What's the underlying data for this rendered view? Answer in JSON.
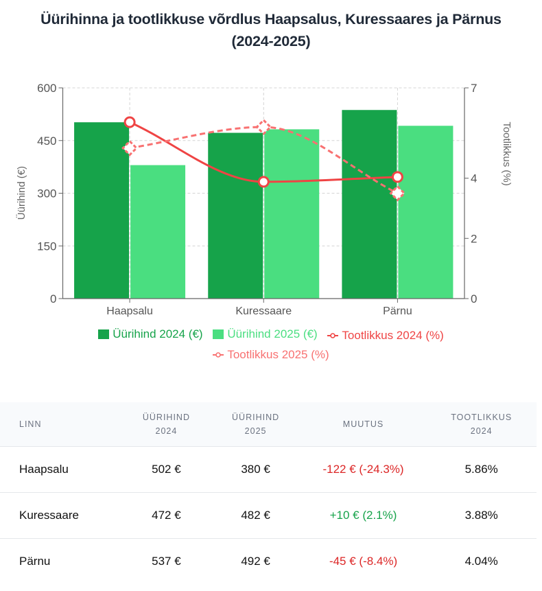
{
  "title_line1": "Üürihinna ja tootlikkuse võrdlus Haapsalus, Kuressaares ja Pärnus",
  "title_line2": "(2024-2025)",
  "colors": {
    "rent2024": "#16a34a",
    "rent2025": "#4ade80",
    "yield2024": "#ef4444",
    "yield2025": "#f87171"
  },
  "chart_data": {
    "type": "bar",
    "title": "Üürihinna ja tootlikkuse võrdlus Haapsalus, Kuressaares ja Pärnus (2024-2025)",
    "categories": [
      "Haapsalu",
      "Kuressaare",
      "Pärnu"
    ],
    "xlabel": "",
    "ylabel": "Üürihind (€)",
    "ylabel_right": "Tootlikkus (%)",
    "ylim": [
      0,
      600
    ],
    "ylim_right": [
      0,
      7
    ],
    "yticks": [
      "0",
      "150",
      "300",
      "450",
      "600"
    ],
    "yticks_right": [
      "0",
      "2",
      "4",
      "7"
    ],
    "grid": true,
    "legend_position": "bottom",
    "series": [
      {
        "name": "Üürihind 2024 (€)",
        "type": "bar",
        "axis": "left",
        "values": [
          502,
          472,
          537
        ]
      },
      {
        "name": "Üürihind 2025 (€)",
        "type": "bar",
        "axis": "left",
        "values": [
          380,
          482,
          492
        ]
      },
      {
        "name": "Tootlikkus 2024 (%)",
        "type": "line",
        "axis": "right",
        "style": "solid",
        "values": [
          5.86,
          3.88,
          4.04
        ]
      },
      {
        "name": "Tootlikkus 2025 (%)",
        "type": "line",
        "axis": "right",
        "style": "dashed",
        "values": [
          5.0,
          5.7,
          3.5
        ]
      }
    ]
  },
  "table": {
    "headers": [
      [
        "LINN"
      ],
      [
        "ÜÜRIHIND",
        "2024"
      ],
      [
        "ÜÜRIHIND",
        "2025"
      ],
      [
        "MUUTUS"
      ],
      [
        "TOOTLIKKUS",
        "2024"
      ]
    ],
    "rows": [
      {
        "city": "Haapsalu",
        "rent2024": "502 €",
        "rent2025": "380 €",
        "change": "-122 € (-24.3%)",
        "change_dir": "neg",
        "yield2024": "5.86%"
      },
      {
        "city": "Kuressaare",
        "rent2024": "472 €",
        "rent2025": "482 €",
        "change": "+10 € (2.1%)",
        "change_dir": "pos",
        "yield2024": "3.88%"
      },
      {
        "city": "Pärnu",
        "rent2024": "537 €",
        "rent2025": "492 €",
        "change": "-45 € (-8.4%)",
        "change_dir": "neg",
        "yield2024": "4.04%"
      }
    ]
  }
}
